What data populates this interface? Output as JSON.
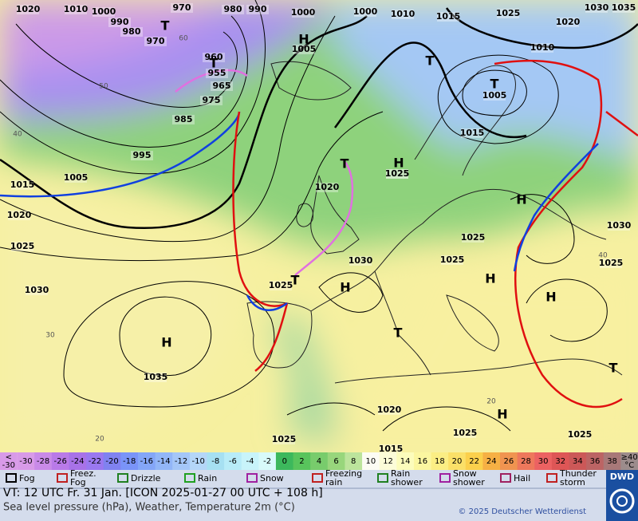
{
  "map": {
    "pressure_labels": [
      "1020",
      "1010",
      "1000",
      "990",
      "980",
      "970",
      "970",
      "960",
      "955",
      "965",
      "975",
      "985",
      "995",
      "1005",
      "1015",
      "1020",
      "1025",
      "1030",
      "1035",
      "980",
      "990",
      "1000",
      "1000",
      "1010",
      "1015",
      "1025",
      "1030",
      "1035",
      "1020",
      "1010",
      "1005",
      "1015",
      "1025",
      "1020",
      "1030",
      "1025",
      "1025",
      "1025",
      "1030",
      "1025",
      "1020",
      "1025",
      "1025",
      "1025",
      "1015",
      "1005",
      "1025"
    ],
    "centers": [
      "T",
      "T",
      "H",
      "T",
      "T",
      "H",
      "T",
      "H",
      "H",
      "H",
      "T",
      "H",
      "H",
      "T",
      "T",
      "H"
    ],
    "temp_labels": [
      "60",
      "50",
      "40",
      "30",
      "20",
      "40",
      "20"
    ]
  },
  "scale": {
    "low": "<",
    "low_value": "-30",
    "values": [
      -30,
      -28,
      -26,
      -24,
      -22,
      -20,
      -18,
      -16,
      -14,
      -12,
      -10,
      -8,
      -6,
      -4,
      -2,
      0,
      2,
      4,
      6,
      8,
      10,
      12,
      14,
      16,
      18,
      20,
      22,
      24,
      26,
      28,
      30,
      32,
      34,
      36,
      38
    ],
    "colors": [
      "#d89ae8",
      "#c98ae8",
      "#b97ae8",
      "#a872e8",
      "#9a78f0",
      "#8082f0",
      "#7a94f8",
      "#84a6f8",
      "#92b6f8",
      "#a4c6f8",
      "#b4d6f8",
      "#a6e0f2",
      "#b8ecf8",
      "#c8f4fa",
      "#d8fafa",
      "#3cb85c",
      "#58c45c",
      "#78cc6c",
      "#98d67c",
      "#bce49c",
      "#fcfcf4",
      "#fcfcd8",
      "#fcfcbc",
      "#fbf6a0",
      "#fbee84",
      "#fbe068",
      "#fbd04c",
      "#f6b044",
      "#f09450",
      "#ee785c",
      "#ec6262",
      "#de5656",
      "#cc5858",
      "#bc6464",
      "#a87878"
    ],
    "high": "≥40",
    "unit": "°C",
    "high_color": "#9c8c8c"
  },
  "legend": [
    "Fog",
    "Freez. Fog",
    "Drizzle",
    "Rain",
    "Snow",
    "Freezing rain",
    "Rain shower",
    "Snow shower",
    "Hail",
    "Thunder storm"
  ],
  "footer": {
    "valid": "VT: 12 UTC Fr.  31 Jan. [ICON 2025-01-27  00 UTC + 108 h]",
    "description": "Sea level pressure (hPa), Weather, Temperature 2m (°C)",
    "copyright": "© 2025 Deutscher Wetterdienst",
    "logo": "DWD"
  }
}
